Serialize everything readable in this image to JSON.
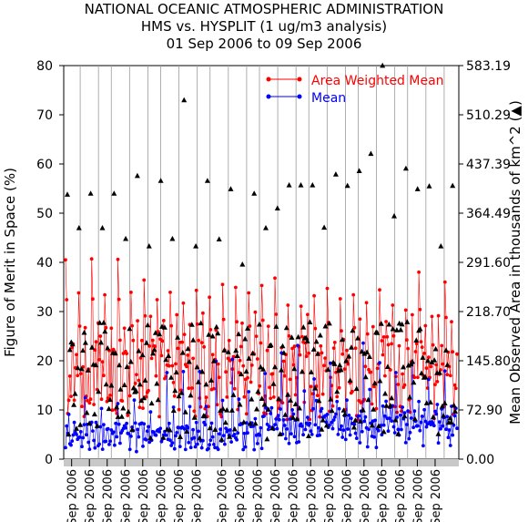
{
  "chart_data": {
    "type": "scatter",
    "title_lines": [
      "NATIONAL OCEANIC ATMOSPHERIC ADMINISTRATION",
      "HMS vs. HYSPLIT (1 ug/m3 analysis)",
      "01 Sep 2006 to 09 Sep 2006"
    ],
    "ylabel_left": "Figure of Merit in Space (%)",
    "ylabel_right": "Mean Observed Area in thousands of km^2 (▲)",
    "ylim_left": [
      0,
      80
    ],
    "left_ticks": [
      "0",
      "10",
      "20",
      "30",
      "40",
      "50",
      "60",
      "70",
      "80"
    ],
    "ylim_right": [
      0,
      583.19
    ],
    "right_ticks": [
      "0.00",
      "72.90",
      "145.80",
      "218.70",
      "291.60",
      "364.49",
      "437.39",
      "510.29",
      "583.19"
    ],
    "x_tick_labels": [
      "Sep 2006",
      "Sep 2006",
      "Sep 2006",
      "Sep 2006",
      "Sep 2006",
      "Sep 2006",
      "Sep 2006",
      "Sep 2006",
      "Sep 2006",
      "Sep 2006",
      "Sep 2006",
      "Sep 2006",
      "Sep 2006",
      "Sep 2006",
      "Sep 2006",
      "Sep 2006",
      "Sep 2006",
      "Sep 2006",
      "Sep 2006",
      "Sep 2006",
      "Sep 2006"
    ],
    "x_tick_positions": [
      0.02,
      0.065,
      0.11,
      0.155,
      0.2,
      0.245,
      0.29,
      0.335,
      0.4,
      0.445,
      0.49,
      0.535,
      0.58,
      0.625,
      0.67,
      0.715,
      0.76,
      0.805,
      0.85,
      0.895,
      0.94
    ],
    "grid_lines_x": true,
    "legend_position": "top-right",
    "series": [
      {
        "name": "Area Weighted Mean",
        "color": "#ff0000",
        "marker": "circle"
      },
      {
        "name": "Mean",
        "color": "#0000ff",
        "marker": "circle"
      },
      {
        "color": "#000000",
        "marker": "triangle"
      }
    ],
    "triangle_peaks": [
      53.8,
      47,
      54,
      47,
      54,
      44.8,
      57.6,
      43.3,
      56.6,
      44.8,
      73,
      43.3,
      56.6,
      44.7,
      54.9,
      39.6,
      54,
      47,
      51,
      55.7,
      55.7,
      55.7,
      47.1,
      57.9,
      55.6,
      58.6,
      62.1,
      80,
      49.4,
      59.1,
      54.9,
      55.5,
      43.3,
      55.6,
      54.6,
      44.8
    ],
    "red_peaks": [
      40.5,
      33.8,
      40.7,
      33.4,
      40.6,
      33.9,
      36.4,
      32.4,
      33.9,
      31.7,
      34.3,
      32.9,
      35.5,
      34.9,
      33.8,
      35.3,
      36.8,
      31.3,
      31.1,
      33.2,
      34.7,
      32.6,
      33.4,
      31.8,
      34.4,
      31.3,
      30.3,
      38,
      29,
      36
    ],
    "blue_peaks": [
      9.1,
      12.5,
      10.3,
      11.3,
      12,
      9.6,
      17.6,
      17.8,
      17.8,
      19.9,
      20.3,
      13.7,
      17.4,
      21.6,
      23.1,
      16.3,
      19.5,
      12,
      23.6,
      19.6,
      17.6,
      19.5,
      16.2,
      17.9
    ]
  }
}
